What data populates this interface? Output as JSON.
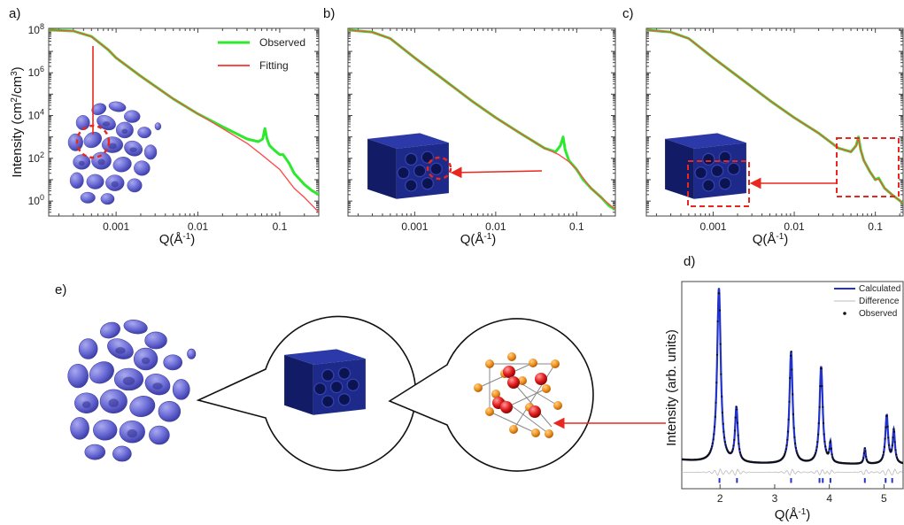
{
  "labels": {
    "a": "a)",
    "b": "b)",
    "c": "c)",
    "d": "d)",
    "e": "e)"
  },
  "colors": {
    "observed": "#2ee82e",
    "fitting": "#ff4a4a",
    "calculated": "#2233cc",
    "difference": "#bbbbbb",
    "observed_points": "#111111",
    "annotation": "#e8281e",
    "blob": "#6b6bd6",
    "hex": "#1e2a8a",
    "atom_orange": "#f0921e",
    "atom_red": "#e01a1a"
  },
  "icons": {
    "disordered": "disordered-pore-cluster-icon",
    "hexagonal": "hexagonal-prism-icon",
    "crystal": "crystal-lattice-icon"
  },
  "chart_data": [
    {
      "panel": "a",
      "type": "line",
      "xscale": "log",
      "yscale": "log",
      "xlim": [
        0.00015,
        0.3
      ],
      "ylim": [
        0.2,
        120000000.0
      ],
      "xticks": [
        0.001,
        0.01,
        0.1
      ],
      "xtick_labels": [
        "0.001",
        "0.01",
        "0.1"
      ],
      "yticks": [
        1,
        100,
        10000,
        1000000,
        100000000
      ],
      "ytick_base": "10",
      "ytick_exps": [
        "0",
        "2",
        "4",
        "6",
        "8"
      ],
      "xlabel": "Q(Å",
      "xlabel_sup": "-1",
      "xlabel_end": ")",
      "ylabel": "Intensity (cm",
      "ylabel_sup1": "2",
      "ylabel_mid": "/cm",
      "ylabel_sup2": "3",
      "ylabel_end": ")",
      "legend": [
        "Observed",
        "Fitting"
      ],
      "legend_position": "top-right",
      "series": [
        {
          "name": "Observed",
          "x": [
            0.00015,
            0.0003,
            0.0005,
            0.0008,
            0.001,
            0.002,
            0.005,
            0.01,
            0.02,
            0.04,
            0.055,
            0.062,
            0.066,
            0.07,
            0.075,
            0.085,
            0.1,
            0.11,
            0.13,
            0.15,
            0.2,
            0.25,
            0.3
          ],
          "y": [
            100000000.0,
            90000000.0,
            50000000.0,
            12000000.0,
            5000000.0,
            700000.0,
            60000.0,
            12000.0,
            3000,
            800,
            600,
            800,
            2500,
            800,
            400,
            250,
            150,
            150,
            60,
            20,
            6,
            3,
            2
          ]
        },
        {
          "name": "Fitting",
          "x": [
            0.00015,
            0.0003,
            0.0005,
            0.0008,
            0.001,
            0.002,
            0.005,
            0.01,
            0.02,
            0.04,
            0.06,
            0.1,
            0.15,
            0.2,
            0.3
          ],
          "y": [
            100000000.0,
            90000000.0,
            50000000.0,
            12000000.0,
            5000000.0,
            700000.0,
            60000.0,
            12000.0,
            2500,
            500,
            150,
            30,
            4,
            1.5,
            0.3
          ]
        }
      ]
    },
    {
      "panel": "b",
      "type": "line",
      "xscale": "log",
      "yscale": "log",
      "xlim": [
        0.00015,
        0.3
      ],
      "ylim": [
        0.2,
        120000000.0
      ],
      "xticks": [
        0.001,
        0.01,
        0.1
      ],
      "xtick_labels": [
        "0.001",
        "0.01",
        "0.1"
      ],
      "yticks": [
        1,
        100,
        10000,
        1000000,
        100000000
      ],
      "xlabel": "Q(Å",
      "xlabel_sup": "-1",
      "xlabel_end": ")",
      "series": [
        {
          "name": "Observed",
          "x": [
            0.00015,
            0.0003,
            0.0005,
            0.001,
            0.002,
            0.005,
            0.01,
            0.02,
            0.04,
            0.055,
            0.063,
            0.068,
            0.072,
            0.08,
            0.1,
            0.12,
            0.15,
            0.2,
            0.25,
            0.3
          ],
          "y": [
            100000000.0,
            80000000.0,
            40000000.0,
            5000000.0,
            700000.0,
            50000.0,
            8000,
            1500,
            300,
            200,
            400,
            1000,
            250,
            80,
            30,
            10,
            4,
            1.5,
            0.6,
            0.4
          ]
        },
        {
          "name": "Fitting",
          "x": [
            0.00015,
            0.0003,
            0.0005,
            0.001,
            0.002,
            0.005,
            0.01,
            0.02,
            0.04,
            0.06,
            0.08,
            0.1,
            0.15,
            0.2,
            0.3
          ],
          "y": [
            100000000.0,
            80000000.0,
            40000000.0,
            5000000.0,
            700000.0,
            50000.0,
            8000,
            1500,
            300,
            150,
            70,
            30,
            4,
            1.5,
            0.4
          ]
        }
      ]
    },
    {
      "panel": "c",
      "type": "line",
      "xscale": "log",
      "yscale": "log",
      "xlim": [
        0.00015,
        0.22
      ],
      "ylim": [
        0.2,
        120000000.0
      ],
      "xticks": [
        0.001,
        0.01,
        0.1
      ],
      "xtick_labels": [
        "0.001",
        "0.01",
        "0.1"
      ],
      "yticks": [
        1,
        100,
        10000,
        1000000,
        100000000
      ],
      "xlabel": "Q(Å",
      "xlabel_sup": "-1",
      "xlabel_end": ")",
      "series": [
        {
          "name": "Observed",
          "x": [
            0.00015,
            0.0003,
            0.0005,
            0.001,
            0.002,
            0.005,
            0.01,
            0.02,
            0.035,
            0.05,
            0.058,
            0.062,
            0.066,
            0.072,
            0.085,
            0.1,
            0.11,
            0.13,
            0.16,
            0.22
          ],
          "y": [
            100000000.0,
            80000000.0,
            40000000.0,
            5000000.0,
            700000.0,
            50000.0,
            8000,
            1500,
            300,
            200,
            400,
            1000,
            250,
            80,
            25,
            10,
            12,
            4,
            2,
            0.8
          ]
        },
        {
          "name": "Fitting",
          "x": [
            0.00015,
            0.0003,
            0.0005,
            0.001,
            0.002,
            0.005,
            0.01,
            0.02,
            0.035,
            0.05,
            0.058,
            0.062,
            0.066,
            0.072,
            0.085,
            0.1,
            0.11,
            0.13,
            0.16,
            0.22
          ],
          "y": [
            100000000.0,
            80000000.0,
            40000000.0,
            5000000.0,
            700000.0,
            50000.0,
            8000,
            1500,
            300,
            200,
            380,
            900,
            240,
            80,
            25,
            10,
            11,
            4,
            2,
            0.8
          ]
        }
      ]
    },
    {
      "panel": "d",
      "type": "line",
      "xscale": "linear",
      "yscale": "linear",
      "xlim": [
        1.3,
        5.35
      ],
      "ylim": [
        -0.05,
        1.02
      ],
      "xticks": [
        2,
        3,
        4,
        5
      ],
      "xtick_labels": [
        "2",
        "3",
        "4",
        "5"
      ],
      "xlabel": "Q(Å",
      "xlabel_sup": "-1",
      "xlabel_end": ")",
      "ylabel": "Intensity (arb. units)",
      "legend": [
        "Calculated",
        "Difference",
        "Observed"
      ],
      "legend_position": "top-right",
      "peaks": [
        {
          "center": 1.98,
          "height": 0.9,
          "width": 0.04
        },
        {
          "center": 2.3,
          "height": 0.28,
          "width": 0.03
        },
        {
          "center": 3.3,
          "height": 0.58,
          "width": 0.035
        },
        {
          "center": 3.85,
          "height": 0.5,
          "width": 0.035
        },
        {
          "center": 4.02,
          "height": 0.1,
          "width": 0.02
        },
        {
          "center": 4.65,
          "height": 0.08,
          "width": 0.02
        },
        {
          "center": 5.05,
          "height": 0.25,
          "width": 0.03
        },
        {
          "center": 5.18,
          "height": 0.17,
          "width": 0.025
        }
      ],
      "baseline": 0.075,
      "reflections": [
        1.99,
        2.31,
        3.3,
        3.82,
        3.88,
        4.02,
        4.65,
        5.03,
        5.15
      ],
      "observed_max": 0.95
    }
  ]
}
